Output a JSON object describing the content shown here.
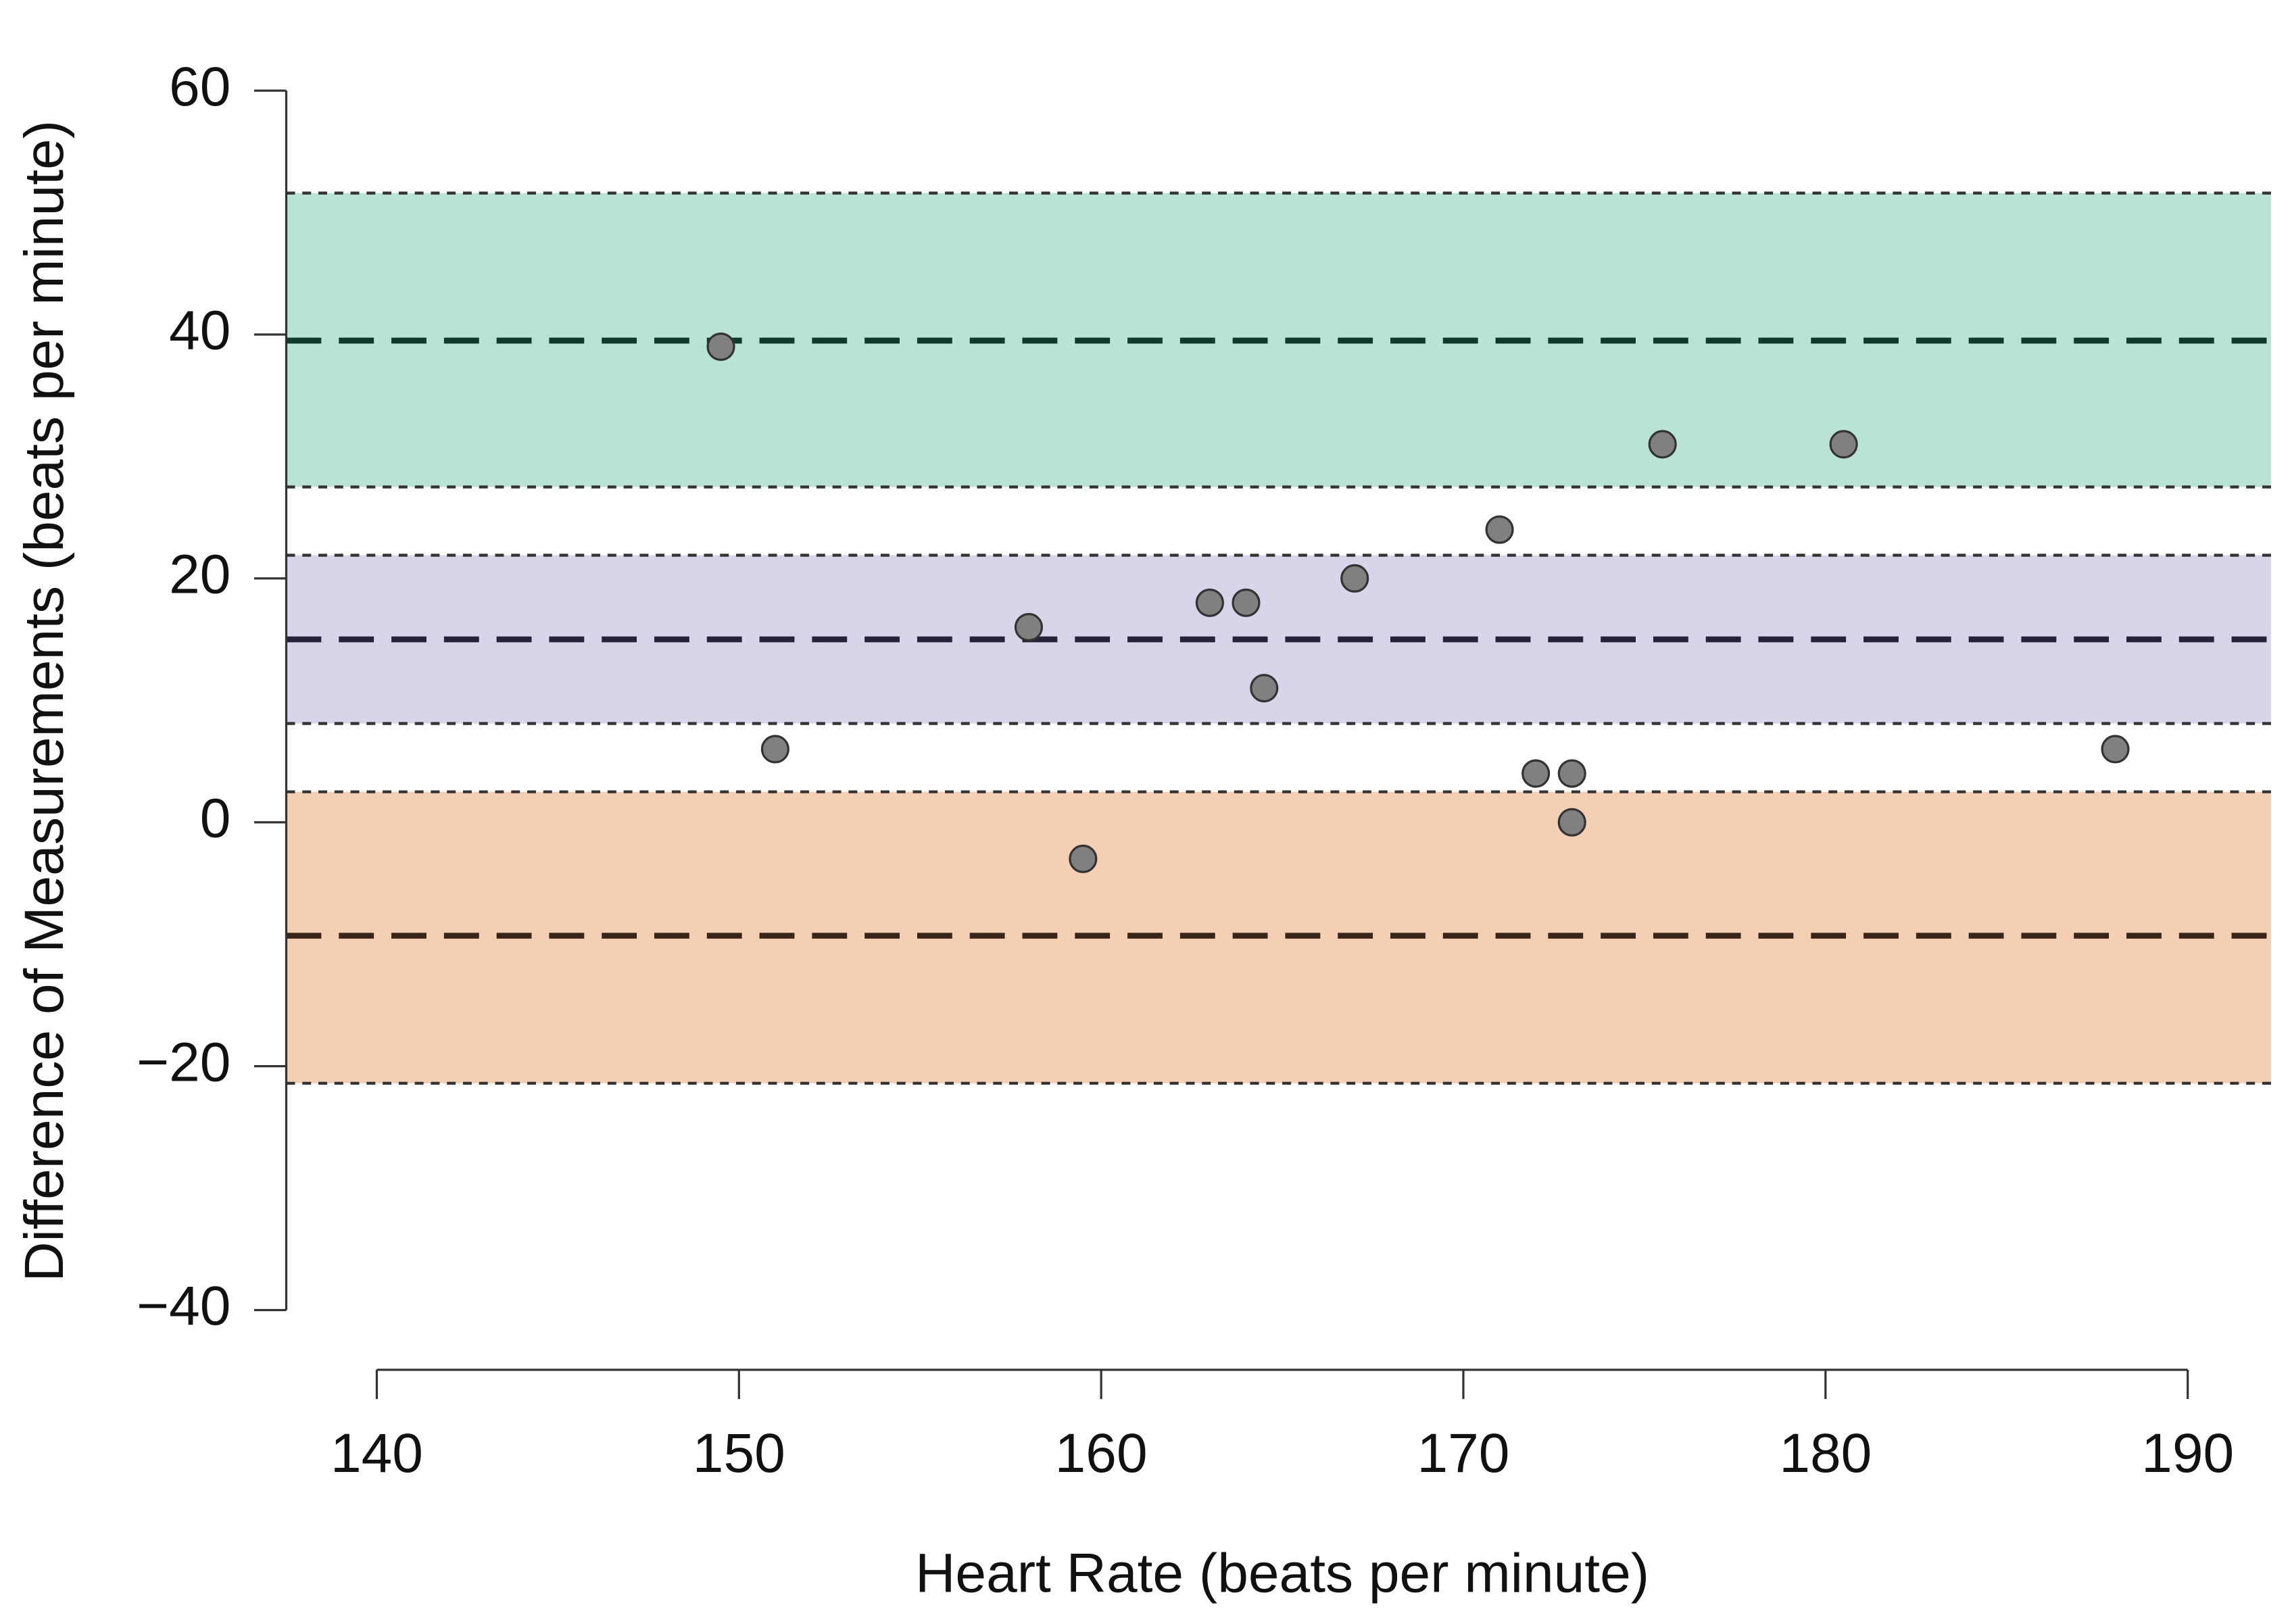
{
  "chart_data": {
    "type": "scatter",
    "x_label": "Heart Rate (beats per minute)",
    "y_label": "Difference of Measurements (beats per minute)",
    "x": [
      149.5,
      151,
      158,
      159.5,
      163,
      164,
      164.5,
      167,
      171,
      172,
      173,
      173,
      175.5,
      180.5,
      188
    ],
    "y": [
      39,
      6,
      16,
      -3,
      18,
      18,
      11,
      20,
      24,
      4,
      4,
      0,
      31,
      31,
      6
    ],
    "color": "#808080",
    "xlim": [
      137.5,
      192.3
    ],
    "ylim": [
      -44.9,
      60
    ],
    "xticks": [
      140,
      150,
      160,
      170,
      180,
      190
    ],
    "yticks": [
      {
        "value": -40,
        "label": "−40"
      },
      {
        "value": -20,
        "label": "−20"
      },
      0,
      20,
      40,
      60
    ],
    "bands": [
      {
        "lower": 27.5,
        "upper": 51.6,
        "center": 39.5,
        "color": "#b8e3d6",
        "line_color": "#0f3a2e"
      },
      {
        "lower": 8.1,
        "upper": 21.9,
        "center": 15.0,
        "color": "#d8d5ea",
        "line_color": "#26223a"
      },
      {
        "lower": -21.4,
        "upper": 2.5,
        "center": -9.3,
        "color": "#f4cfb3",
        "line_color": "#3a2619"
      }
    ]
  }
}
